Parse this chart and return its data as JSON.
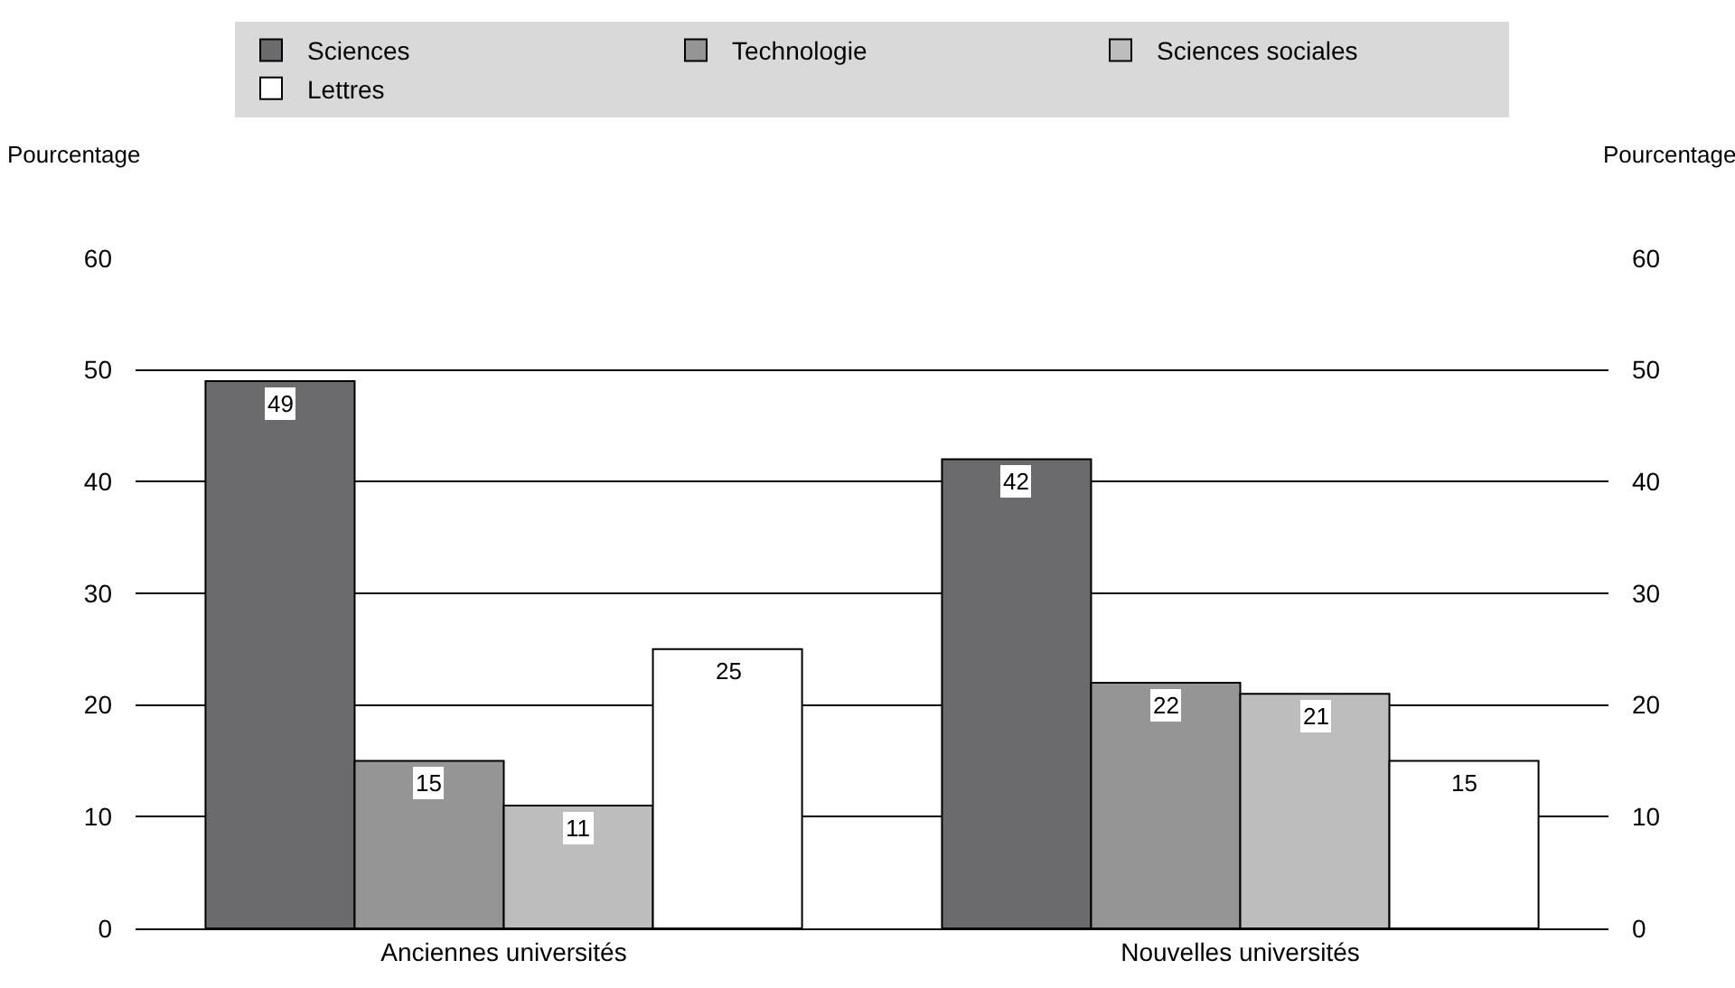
{
  "chart_data": {
    "type": "bar",
    "categories": [
      "Anciennes universités",
      "Nouvelles universités"
    ],
    "series": [
      {
        "name": "Sciences",
        "color": "#6b6b6d",
        "values": [
          49,
          42
        ]
      },
      {
        "name": "Technologie",
        "color": "#959595",
        "values": [
          15,
          22
        ]
      },
      {
        "name": "Sciences sociales",
        "color": "#bdbdbd",
        "values": [
          11,
          21
        ]
      },
      {
        "name": "Lettres",
        "color": "#ffffff",
        "values": [
          25,
          15
        ]
      }
    ],
    "ylabel": "Pourcentage",
    "y2label": "Pourcentage",
    "ylim": [
      0,
      60
    ],
    "yticks": [
      0,
      10,
      20,
      30,
      40,
      50,
      60
    ],
    "y2lim": [
      0,
      60
    ],
    "y2ticks": [
      0,
      10,
      20,
      30,
      40,
      50,
      60
    ],
    "grid": "y",
    "legend": "top",
    "data_labels": true
  }
}
